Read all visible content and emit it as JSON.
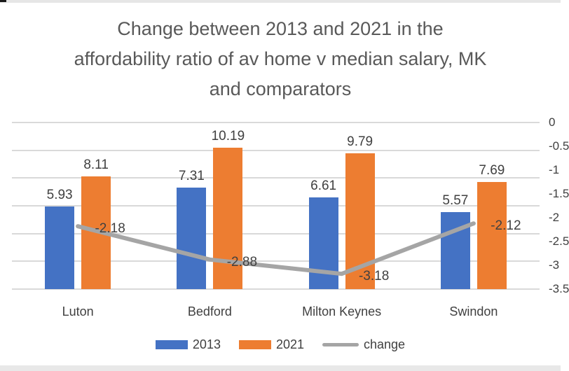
{
  "title_lines": [
    "Change between 2013 and 2021 in the",
    "affordability ratio of av home v median salary, MK",
    "and comparators"
  ],
  "chart_data": {
    "type": "bar",
    "subtype": "combo-clustered-bar-with-line",
    "title": "Change between 2013 and 2021 in the affordability ratio of av home v median salary, MK and comparators",
    "categories": [
      "Luton",
      "Bedford",
      "Milton Keynes",
      "Swindon"
    ],
    "series": [
      {
        "name": "2013",
        "type": "bar",
        "color": "#4472C4",
        "values": [
          5.93,
          7.31,
          6.61,
          5.57
        ]
      },
      {
        "name": "2021",
        "type": "bar",
        "color": "#ED7D31",
        "values": [
          8.11,
          10.19,
          9.79,
          7.69
        ]
      },
      {
        "name": "change",
        "type": "line",
        "color": "#A5A5A5",
        "values": [
          -2.18,
          -2.88,
          -3.18,
          -2.12
        ]
      }
    ],
    "data_labels_visible": true,
    "primary_axis": {
      "min": 0,
      "max": 12,
      "major_unit": 2,
      "labels_visible": false
    },
    "secondary_axis": {
      "side": "right",
      "min": -3.5,
      "max": 0,
      "major_unit": 0.5,
      "tick_labels": [
        "0",
        "-0.5",
        "-1",
        "-1.5",
        "-2",
        "-2.5",
        "-3",
        "-3.5"
      ],
      "labels_partially_cut_off": true
    },
    "grid": "horizontal",
    "gridline_count": 7,
    "legend": {
      "position": "bottom",
      "entries": [
        "2013",
        "2021",
        "change"
      ]
    }
  },
  "colors": {
    "title_text": "#595959",
    "label_text": "#404040",
    "gridline": "#D9D9D9",
    "bar_2013": "#4472C4",
    "bar_2021": "#ED7D31",
    "change_line": "#A5A5A5",
    "edge_strip": "#E7E7E7"
  }
}
